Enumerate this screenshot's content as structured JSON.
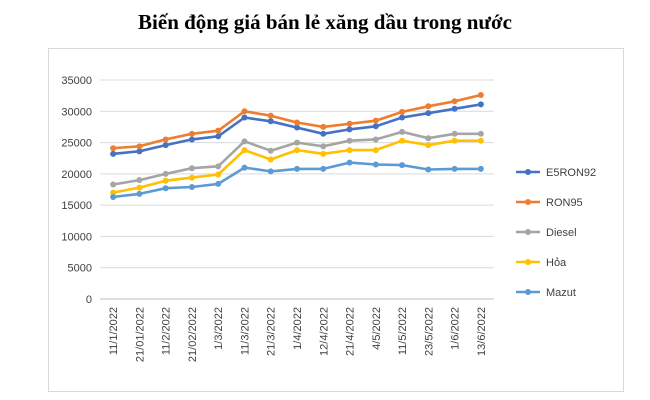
{
  "chart_data": {
    "type": "line",
    "title": "Biến động giá bán lẻ xăng dầu trong nước",
    "categories": [
      "11/1/2022",
      "21/01/2022",
      "11/2/2022",
      "21/02/2022",
      "1/3/2022",
      "11/3/2022",
      "21/3/2022",
      "1/4/2022",
      "12/4/2022",
      "21/4/2022",
      "4/5/2022",
      "11/5/2022",
      "23/5/2022",
      "1/6/2022",
      "13/6/2022"
    ],
    "yticks": [
      "0",
      "5000",
      "10000",
      "15000",
      "20000",
      "25000",
      "30000",
      "35000"
    ],
    "ylim": [
      0,
      35000
    ],
    "grid": true,
    "legend_position": "right",
    "series": [
      {
        "name": "E5RON92",
        "color": "#4472C4",
        "values": [
          23200,
          23600,
          24600,
          25500,
          26000,
          29000,
          28400,
          27400,
          26400,
          27100,
          27600,
          29000,
          29700,
          30400,
          31100
        ]
      },
      {
        "name": "RON95",
        "color": "#ED7D31",
        "values": [
          24100,
          24400,
          25500,
          26400,
          26900,
          30000,
          29300,
          28200,
          27500,
          28000,
          28500,
          29900,
          30800,
          31600,
          32600
        ]
      },
      {
        "name": "Diesel",
        "color": "#A5A5A5",
        "values": [
          18300,
          19000,
          20000,
          20900,
          21200,
          25200,
          23700,
          25000,
          24400,
          25300,
          25500,
          26700,
          25700,
          26400,
          26400
        ]
      },
      {
        "name": "Hỏa",
        "color": "#FFC000",
        "values": [
          17000,
          17800,
          18900,
          19400,
          19900,
          23800,
          22300,
          23800,
          23200,
          23800,
          23800,
          25300,
          24600,
          25300,
          25300
        ]
      },
      {
        "name": "Mazut",
        "color": "#5B9BD5",
        "values": [
          16300,
          16800,
          17700,
          17900,
          18400,
          21000,
          20400,
          20800,
          20800,
          21800,
          21500,
          21400,
          20700,
          20800,
          20800
        ]
      }
    ]
  }
}
